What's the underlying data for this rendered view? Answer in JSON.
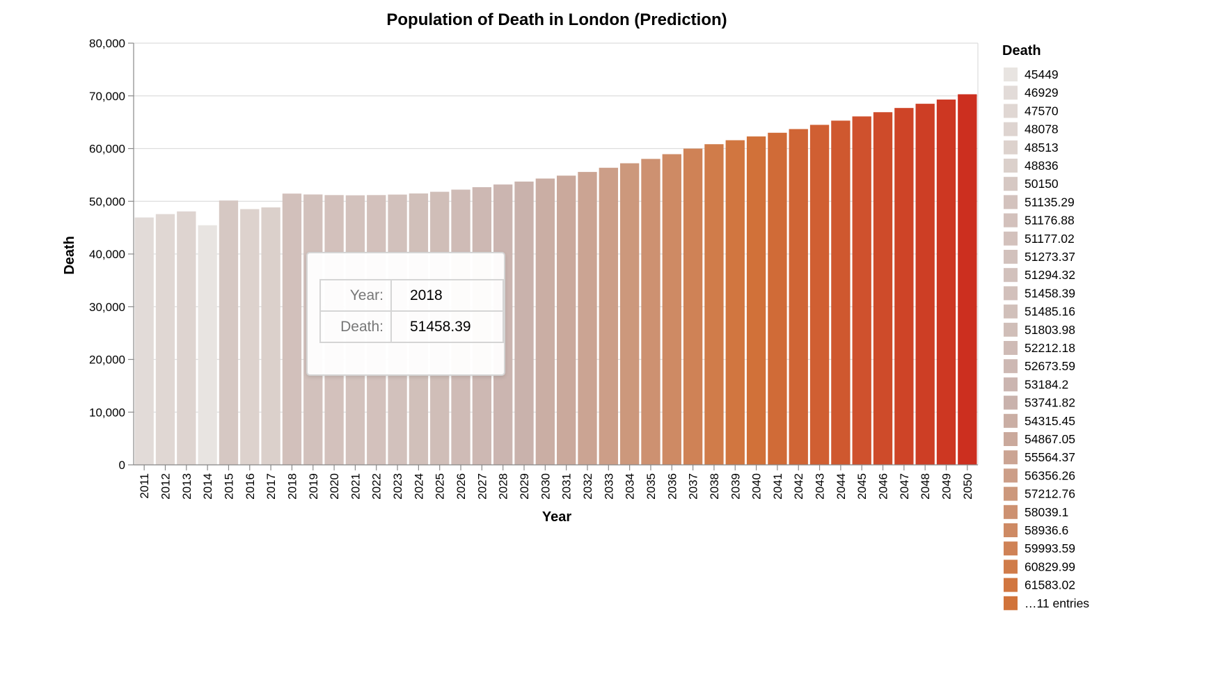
{
  "chart_data": {
    "type": "bar",
    "title": "Population of Death in London (Prediction)",
    "xlabel": "Year",
    "ylabel": "Death",
    "ylim": [
      0,
      80000
    ],
    "yticks": [
      0,
      10000,
      20000,
      30000,
      40000,
      50000,
      60000,
      70000,
      80000
    ],
    "ytick_labels": [
      "0",
      "10,000",
      "20,000",
      "30,000",
      "40,000",
      "50,000",
      "60,000",
      "70,000",
      "80,000"
    ],
    "grid": true,
    "categories": [
      "2011",
      "2012",
      "2013",
      "2014",
      "2015",
      "2016",
      "2017",
      "2018",
      "2019",
      "2020",
      "2021",
      "2022",
      "2023",
      "2024",
      "2025",
      "2026",
      "2027",
      "2028",
      "2029",
      "2030",
      "2031",
      "2032",
      "2033",
      "2034",
      "2035",
      "2036",
      "2037",
      "2038",
      "2039",
      "2040",
      "2041",
      "2042",
      "2043",
      "2044",
      "2045",
      "2046",
      "2047",
      "2048",
      "2049",
      "2050"
    ],
    "values": [
      46929,
      47570,
      48078,
      45449,
      50150,
      48513,
      48836,
      51458.39,
      51294.32,
      51176.88,
      51135.29,
      51177.02,
      51273.37,
      51485.16,
      51803.98,
      52212.18,
      52673.59,
      53184.2,
      53741.82,
      54315.45,
      54867.05,
      55564.37,
      56356.26,
      57212.76,
      58039.1,
      58936.6,
      59993.59,
      60829.99,
      61583.02,
      62300,
      63000,
      63700,
      64500,
      65300,
      66100,
      66900,
      67700,
      68500,
      69300,
      70300
    ],
    "color_range": [
      "#e8e4e1",
      "#c9b2ac",
      "#d1733a",
      "#cc2f1f"
    ],
    "legend": {
      "title": "Death",
      "position": "right",
      "entries": [
        "45449",
        "46929",
        "47570",
        "48078",
        "48513",
        "48836",
        "50150",
        "51135.29",
        "51176.88",
        "51177.02",
        "51273.37",
        "51294.32",
        "51458.39",
        "51485.16",
        "51803.98",
        "52212.18",
        "52673.59",
        "53184.2",
        "53741.82",
        "54315.45",
        "54867.05",
        "55564.37",
        "56356.26",
        "57212.76",
        "58039.1",
        "58936.6",
        "59993.59",
        "60829.99",
        "61583.02",
        "…11 entries"
      ]
    },
    "tooltip": {
      "year_label": "Year:",
      "year_value": "2018",
      "death_label": "Death:",
      "death_value": "51458.39"
    }
  }
}
